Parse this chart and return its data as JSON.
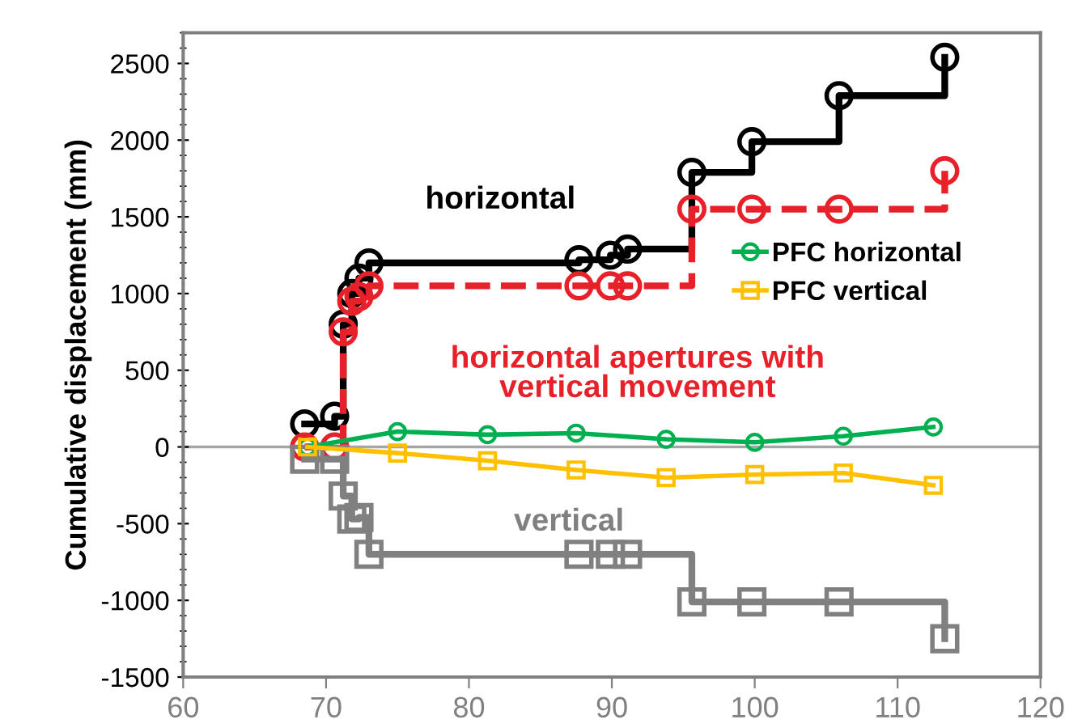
{
  "chart_data": {
    "type": "step",
    "ylabel": "Cumulative displacement (mm)",
    "xlim": [
      60,
      120
    ],
    "xticks": [
      60,
      70,
      80,
      90,
      100,
      110,
      120
    ],
    "ylim": [
      -1500,
      2700
    ],
    "yticks": [
      -1500,
      -1000,
      -500,
      0,
      500,
      1000,
      1500,
      2000,
      2500
    ],
    "legend": "right",
    "grid": false,
    "ref_lines": [
      {
        "axis": "y",
        "value": 0,
        "color": "#a6a6a6"
      }
    ],
    "series": [
      {
        "name": "horizontal",
        "color": "#000000",
        "marker": "circle",
        "line_style": "solid",
        "x": [
          68.5,
          70.6,
          71.2,
          71.8,
          72.3,
          73,
          87.7,
          89.9,
          91.1,
          95.6,
          99.8,
          105.9,
          113.3
        ],
        "values": [
          150,
          200,
          800,
          1000,
          1100,
          1200,
          1220,
          1250,
          1290,
          1790,
          1990,
          2290,
          2540
        ]
      },
      {
        "name": "horizontal apertures with\nvertical movement",
        "color": "#e8202a",
        "marker": "circle",
        "line_style": "dashed",
        "x": [
          68.5,
          70.6,
          71.2,
          71.8,
          72.3,
          73,
          87.7,
          89.9,
          91.1,
          95.6,
          99.8,
          105.9,
          113.3
        ],
        "values": [
          0,
          0,
          750,
          950,
          980,
          1050,
          1050,
          1050,
          1050,
          1550,
          1550,
          1550,
          1800
        ]
      },
      {
        "name": "vertical",
        "color": "#808080",
        "marker": "square",
        "line_style": "solid",
        "x": [
          68.5,
          70.6,
          71.2,
          71.8,
          72.3,
          73,
          87.7,
          89.9,
          91.1,
          95.6,
          99.8,
          105.9,
          113.3
        ],
        "values": [
          -80,
          -80,
          -320,
          -470,
          -460,
          -700,
          -700,
          -700,
          -700,
          -1010,
          -1010,
          -1010,
          -1250
        ]
      },
      {
        "name": "PFC horizontal",
        "type": "line",
        "color": "#00b050",
        "marker": "circle",
        "line_style": "solid",
        "x": [
          68.7,
          75,
          81.3,
          87.5,
          93.8,
          100,
          106.2,
          112.5
        ],
        "values": [
          0,
          100,
          80,
          90,
          50,
          30,
          70,
          130
        ]
      },
      {
        "name": "PFC vertical",
        "type": "line",
        "color": "#ffc000",
        "marker": "square",
        "line_style": "solid",
        "x": [
          68.7,
          75,
          81.3,
          87.5,
          93.8,
          100,
          106.2,
          112.5
        ],
        "values": [
          0,
          -40,
          -90,
          -150,
          -200,
          -180,
          -170,
          -250
        ]
      }
    ]
  }
}
